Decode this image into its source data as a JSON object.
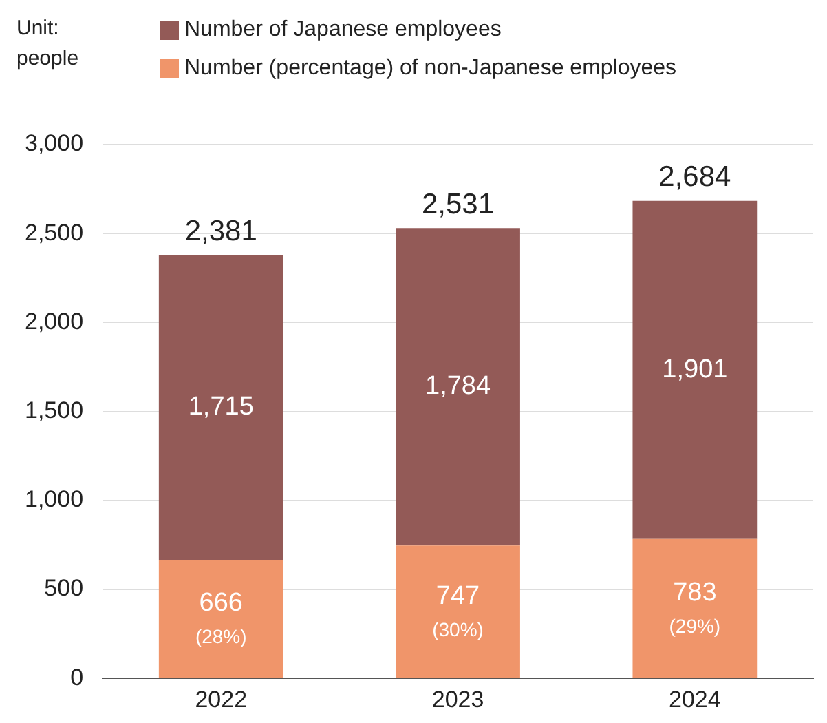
{
  "chart_data": {
    "type": "bar",
    "ylabel": "Unit: people",
    "categories": [
      "2022",
      "2023",
      "2024"
    ],
    "stacked": true,
    "legend": "top",
    "grid": "y",
    "series": [
      {
        "name": "Number (percentage) of non-Japanese employees",
        "color": "#f0956a",
        "values": [
          666,
          747,
          783
        ],
        "value_labels": [
          "666 (28%)",
          "747 (30%)",
          "783 (29%)"
        ]
      },
      {
        "name": "Number of Japanese employees",
        "color": "#935a57",
        "values": [
          1715,
          1784,
          1901
        ],
        "value_labels": [
          "1,715",
          "1,784",
          "1,901"
        ]
      }
    ],
    "totals": [
      "2,381",
      "2,531",
      "2,684"
    ],
    "ylim": [
      0,
      3000
    ],
    "yticks": [
      0,
      {
        "value": 500,
        "label": "500"
      },
      {
        "value": 1000,
        "label": "1,000"
      },
      {
        "value": 1500,
        "label": "1,500"
      },
      {
        "value": 2000,
        "label": "2,000"
      },
      {
        "value": 2500,
        "label": "2,500"
      },
      {
        "value": 3000,
        "label": "3,000"
      }
    ]
  }
}
